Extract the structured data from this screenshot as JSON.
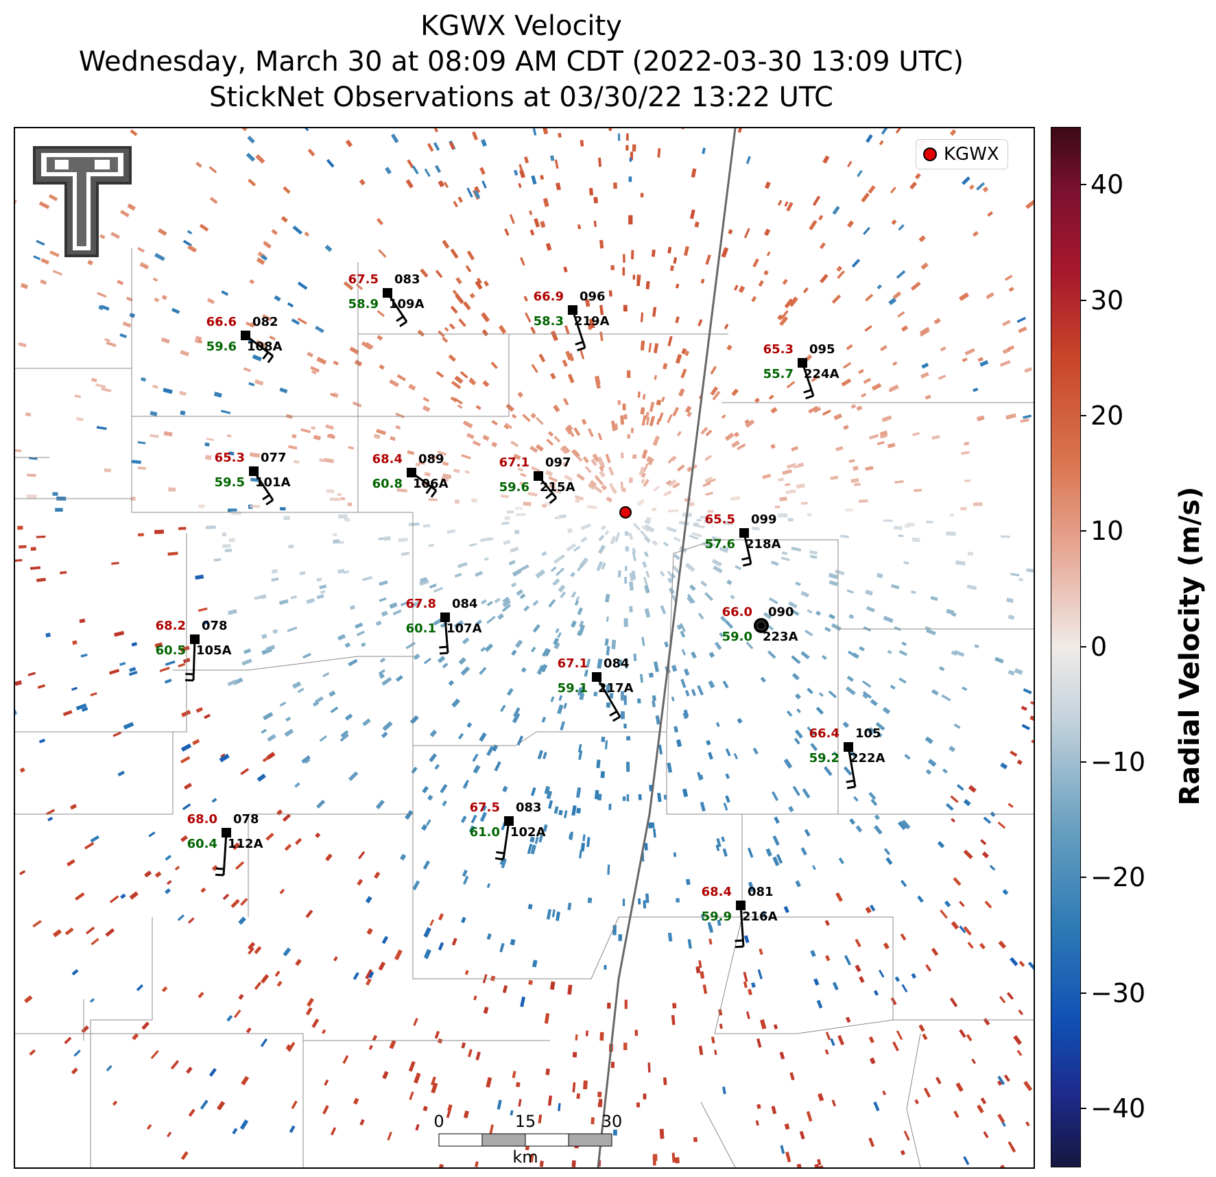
{
  "title": {
    "line1": "KGWX Velocity",
    "line2": "Wednesday, March 30 at 08:09 AM CDT (2022-03-30 13:09 UTC)",
    "line3": "StickNet Observations at 03/30/22 13:22 UTC"
  },
  "legend": {
    "label": "KGWX",
    "marker_color": "#e00000"
  },
  "colorbar": {
    "label": "Radial Velocity (m/s)",
    "ticks": [
      "40",
      "30",
      "20",
      "10",
      "0",
      "−10",
      "−20",
      "−30",
      "−40"
    ],
    "range": [
      -45,
      45
    ]
  },
  "scalebar": {
    "labels": [
      "0",
      "15",
      "30"
    ],
    "unit": "km"
  },
  "logo": {
    "name": "texas-tech-double-t-logo",
    "text": "TT"
  },
  "colors": {
    "temp": "#b00000",
    "dew": "#006400",
    "radar": "#e00000"
  },
  "stations": [
    {
      "id": "109A",
      "temp": "67.5",
      "dew": "58.9",
      "dir": "083"
    },
    {
      "id": "219A",
      "temp": "66.9",
      "dew": "58.3",
      "dir": "096"
    },
    {
      "id": "108A",
      "temp": "66.6",
      "dew": "59.6",
      "dir": "082"
    },
    {
      "id": "224A",
      "temp": "65.3",
      "dew": "55.7",
      "dir": "095"
    },
    {
      "id": "101A",
      "temp": "65.3",
      "dew": "59.5",
      "dir": "077"
    },
    {
      "id": "106A",
      "temp": "68.4",
      "dew": "60.8",
      "dir": "089"
    },
    {
      "id": "215A",
      "temp": "67.1",
      "dew": "59.6",
      "dir": "097"
    },
    {
      "id": "218A",
      "temp": "65.5",
      "dew": "57.6",
      "dir": "099"
    },
    {
      "id": "107A",
      "temp": "67.8",
      "dew": "60.1",
      "dir": "084"
    },
    {
      "id": "105A",
      "temp": "68.2",
      "dew": "60.5",
      "dir": "078"
    },
    {
      "id": "223A",
      "temp": "66.0",
      "dew": "59.0",
      "dir": "090"
    },
    {
      "id": "217A",
      "temp": "67.1",
      "dew": "59.1",
      "dir": "084"
    },
    {
      "id": "222A",
      "temp": "66.4",
      "dew": "59.2",
      "dir": "105"
    },
    {
      "id": "112A",
      "temp": "68.0",
      "dew": "60.4",
      "dir": "078"
    },
    {
      "id": "102A",
      "temp": "67.5",
      "dew": "61.0",
      "dir": "083"
    },
    {
      "id": "216A",
      "temp": "68.4",
      "dew": "59.9",
      "dir": "081"
    }
  ]
}
